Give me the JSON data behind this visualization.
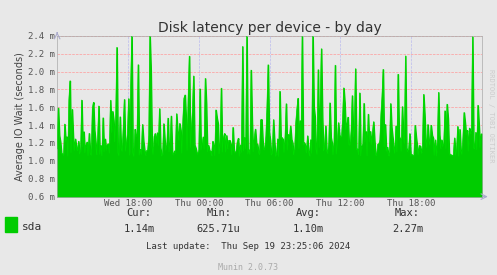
{
  "title": "Disk latency per device - by day",
  "ylabel": "Average IO Wait (seconds)",
  "bg_color": "#e8e8e8",
  "plot_bg_color": "#e8e8e8",
  "grid_color_h": "#ff9999",
  "grid_color_v": "#bbbbee",
  "line_color": "#00dd00",
  "fill_color": "#00cc00",
  "ylim_low": 0.0006,
  "ylim_high": 0.0024,
  "yticks": [
    0.0006,
    0.0008,
    0.001,
    0.0012,
    0.0014,
    0.0016,
    0.0018,
    0.002,
    0.0022,
    0.0024
  ],
  "ytick_labels": [
    "0.6 m",
    "0.8 m",
    "1.0 m",
    "1.2 m",
    "1.4 m",
    "1.6 m",
    "1.8 m",
    "2.0 m",
    "2.2 m",
    "2.4 m"
  ],
  "xtick_labels": [
    "Wed 18:00",
    "Thu 00:00",
    "Thu 06:00",
    "Thu 12:00",
    "Thu 18:00"
  ],
  "legend_label": "sda",
  "legend_color": "#00cc00",
  "cur": "1.14m",
  "min_val": "625.71u",
  "avg": "1.10m",
  "max_val": "2.27m",
  "last_update": "Last update:  Thu Sep 19 23:25:06 2024",
  "munin_version": "Munin 2.0.73",
  "watermark": "RRDTOOL / TOBI OETIKER",
  "seed": 42,
  "n_points": 400
}
